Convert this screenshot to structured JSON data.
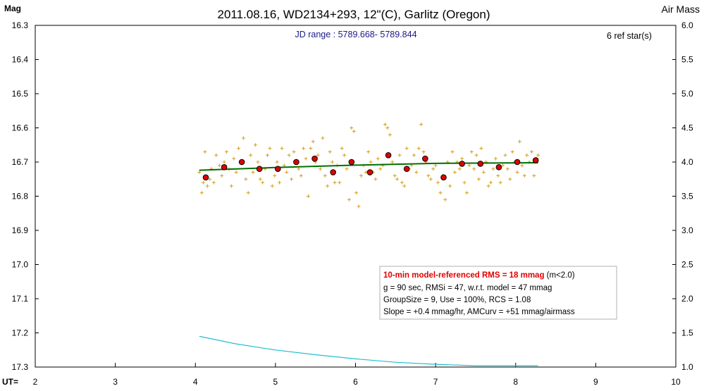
{
  "chart_data": {
    "type": "scatter",
    "title": "2011.08.16, WD2134+293, 12\"(C), Garlitz (Oregon)",
    "subtitle": "JD range : 5789.668- 5789.844",
    "ref_stars": "6 ref star(s)",
    "ylabel_left": "Mag",
    "ylabel_right": "Air Mass",
    "xlabel": "UT=",
    "xlim": [
      2,
      10
    ],
    "ylim": [
      17.3,
      16.3
    ],
    "y2lim": [
      1.0,
      6.0
    ],
    "x_ticks": [
      "2",
      "3",
      "4",
      "5",
      "6",
      "7",
      "8",
      "9",
      "10"
    ],
    "y_ticks": [
      "16.3",
      "16.4",
      "16.5",
      "16.6",
      "16.7",
      "16.8",
      "16.9",
      "17.0",
      "17.1",
      "17.2",
      "17.3"
    ],
    "y2_ticks": [
      "6.0",
      "5.5",
      "5.0",
      "4.5",
      "4.0",
      "3.5",
      "3.0",
      "2.5",
      "2.0",
      "1.5",
      "1.0"
    ],
    "grid": false,
    "colors": {
      "raw": "#d4a017",
      "binned_fill": "#e00000",
      "model": "#007000",
      "airmass": "#20c0d0",
      "rms_text": "#e00000",
      "subtitle": "#1a1a8c"
    },
    "series": [
      {
        "name": "raw",
        "marker": "plus",
        "points": [
          [
            4.05,
            16.73
          ],
          [
            4.08,
            16.79
          ],
          [
            4.1,
            16.76
          ],
          [
            4.12,
            16.67
          ],
          [
            4.15,
            16.77
          ],
          [
            4.18,
            16.75
          ],
          [
            4.2,
            16.72
          ],
          [
            4.23,
            16.76
          ],
          [
            4.26,
            16.68
          ],
          [
            4.3,
            16.71
          ],
          [
            4.33,
            16.74
          ],
          [
            4.36,
            16.7
          ],
          [
            4.39,
            16.67
          ],
          [
            4.42,
            16.72
          ],
          [
            4.45,
            16.77
          ],
          [
            4.48,
            16.69
          ],
          [
            4.51,
            16.73
          ],
          [
            4.54,
            16.66
          ],
          [
            4.57,
            16.7
          ],
          [
            4.6,
            16.63
          ],
          [
            4.63,
            16.75
          ],
          [
            4.66,
            16.79
          ],
          [
            4.69,
            16.68
          ],
          [
            4.72,
            16.73
          ],
          [
            4.75,
            16.65
          ],
          [
            4.78,
            16.7
          ],
          [
            4.81,
            16.75
          ],
          [
            4.84,
            16.76
          ],
          [
            4.87,
            16.72
          ],
          [
            4.9,
            16.68
          ],
          [
            4.93,
            16.66
          ],
          [
            4.96,
            16.77
          ],
          [
            4.99,
            16.74
          ],
          [
            5.02,
            16.7
          ],
          [
            5.05,
            16.76
          ],
          [
            5.08,
            16.66
          ],
          [
            5.11,
            16.71
          ],
          [
            5.14,
            16.73
          ],
          [
            5.17,
            16.68
          ],
          [
            5.2,
            16.75
          ],
          [
            5.23,
            16.67
          ],
          [
            5.26,
            16.7
          ],
          [
            5.29,
            16.72
          ],
          [
            5.32,
            16.74
          ],
          [
            5.35,
            16.66
          ],
          [
            5.38,
            16.69
          ],
          [
            5.41,
            16.8
          ],
          [
            5.44,
            16.66
          ],
          [
            5.47,
            16.64
          ],
          [
            5.5,
            16.7
          ],
          [
            5.53,
            16.68
          ],
          [
            5.56,
            16.72
          ],
          [
            5.59,
            16.63
          ],
          [
            5.62,
            16.74
          ],
          [
            5.65,
            16.77
          ],
          [
            5.68,
            16.67
          ],
          [
            5.71,
            16.7
          ],
          [
            5.74,
            16.76
          ],
          [
            5.77,
            16.71
          ],
          [
            5.8,
            16.76
          ],
          [
            5.83,
            16.66
          ],
          [
            5.86,
            16.68
          ],
          [
            5.89,
            16.72
          ],
          [
            5.92,
            16.81
          ],
          [
            5.95,
            16.6
          ],
          [
            5.98,
            16.61
          ],
          [
            6.01,
            16.79
          ],
          [
            6.04,
            16.83
          ],
          [
            6.07,
            16.74
          ],
          [
            6.1,
            16.71
          ],
          [
            6.13,
            16.73
          ],
          [
            6.16,
            16.67
          ],
          [
            6.19,
            16.7
          ],
          [
            6.22,
            16.73
          ],
          [
            6.25,
            16.75
          ],
          [
            6.28,
            16.69
          ],
          [
            6.31,
            16.72
          ],
          [
            6.34,
            16.71
          ],
          [
            6.37,
            16.59
          ],
          [
            6.4,
            16.6
          ],
          [
            6.43,
            16.62
          ],
          [
            6.46,
            16.7
          ],
          [
            6.49,
            16.74
          ],
          [
            6.52,
            16.75
          ],
          [
            6.55,
            16.68
          ],
          [
            6.58,
            16.76
          ],
          [
            6.61,
            16.77
          ],
          [
            6.64,
            16.66
          ],
          [
            6.67,
            16.72
          ],
          [
            6.7,
            16.71
          ],
          [
            6.73,
            16.68
          ],
          [
            6.76,
            16.73
          ],
          [
            6.79,
            16.66
          ],
          [
            6.82,
            16.59
          ],
          [
            6.85,
            16.67
          ],
          [
            6.88,
            16.7
          ],
          [
            6.91,
            16.74
          ],
          [
            6.94,
            16.75
          ],
          [
            6.97,
            16.72
          ],
          [
            7.0,
            16.71
          ],
          [
            7.03,
            16.76
          ],
          [
            7.06,
            16.79
          ],
          [
            7.09,
            16.74
          ],
          [
            7.12,
            16.81
          ],
          [
            7.15,
            16.7
          ],
          [
            7.18,
            16.77
          ],
          [
            7.21,
            16.67
          ],
          [
            7.24,
            16.73
          ],
          [
            7.27,
            16.7
          ],
          [
            7.3,
            16.72
          ],
          [
            7.33,
            16.69
          ],
          [
            7.36,
            16.76
          ],
          [
            7.39,
            16.79
          ],
          [
            7.42,
            16.71
          ],
          [
            7.45,
            16.67
          ],
          [
            7.48,
            16.72
          ],
          [
            7.51,
            16.68
          ],
          [
            7.54,
            16.75
          ],
          [
            7.57,
            16.66
          ],
          [
            7.6,
            16.73
          ],
          [
            7.63,
            16.7
          ],
          [
            7.66,
            16.77
          ],
          [
            7.69,
            16.76
          ],
          [
            7.72,
            16.72
          ],
          [
            7.75,
            16.69
          ],
          [
            7.78,
            16.74
          ],
          [
            7.81,
            16.76
          ],
          [
            7.84,
            16.71
          ],
          [
            7.87,
            16.68
          ],
          [
            7.9,
            16.72
          ],
          [
            7.93,
            16.75
          ],
          [
            7.96,
            16.67
          ],
          [
            7.99,
            16.7
          ],
          [
            8.02,
            16.73
          ],
          [
            8.05,
            16.64
          ],
          [
            8.08,
            16.71
          ],
          [
            8.11,
            16.74
          ],
          [
            8.14,
            16.68
          ],
          [
            8.17,
            16.7
          ],
          [
            8.2,
            16.67
          ],
          [
            8.23,
            16.74
          ],
          [
            8.26,
            16.69
          ],
          [
            8.28,
            16.68
          ]
        ]
      },
      {
        "name": "binned",
        "marker": "circle",
        "points": [
          [
            4.13,
            16.745
          ],
          [
            4.36,
            16.715
          ],
          [
            4.58,
            16.7
          ],
          [
            4.8,
            16.72
          ],
          [
            5.03,
            16.72
          ],
          [
            5.26,
            16.7
          ],
          [
            5.49,
            16.69
          ],
          [
            5.72,
            16.73
          ],
          [
            5.95,
            16.7
          ],
          [
            6.18,
            16.73
          ],
          [
            6.41,
            16.68
          ],
          [
            6.64,
            16.72
          ],
          [
            6.87,
            16.69
          ],
          [
            7.1,
            16.745
          ],
          [
            7.33,
            16.705
          ],
          [
            7.56,
            16.705
          ],
          [
            7.79,
            16.715
          ],
          [
            8.02,
            16.7
          ],
          [
            8.25,
            16.695
          ]
        ]
      },
      {
        "name": "model",
        "type": "line",
        "points": [
          [
            4.05,
            16.724
          ],
          [
            5.0,
            16.716
          ],
          [
            6.0,
            16.709
          ],
          [
            7.0,
            16.704
          ],
          [
            8.28,
            16.702
          ]
        ]
      },
      {
        "name": "airmass",
        "type": "line",
        "axis": "right",
        "points": [
          [
            4.05,
            1.45
          ],
          [
            4.5,
            1.34
          ],
          [
            5.0,
            1.25
          ],
          [
            5.5,
            1.18
          ],
          [
            6.0,
            1.12
          ],
          [
            6.5,
            1.07
          ],
          [
            7.0,
            1.04
          ],
          [
            7.5,
            1.02
          ],
          [
            8.28,
            1.02
          ]
        ]
      }
    ],
    "stats": {
      "rms_line": "10-min model-referenced RMS = 18 mmag",
      "rms_suffix": " (m<2.0)",
      "line2": "g = 90 sec, RMSi = 47, w.r.t. model = 47 mmag",
      "line3": "GroupSize = 9, Use = 100%, RCS = 1.08",
      "line4": "Slope = +0.4 mmag/hr, AMCurv = +51 mmag/airmass"
    }
  }
}
